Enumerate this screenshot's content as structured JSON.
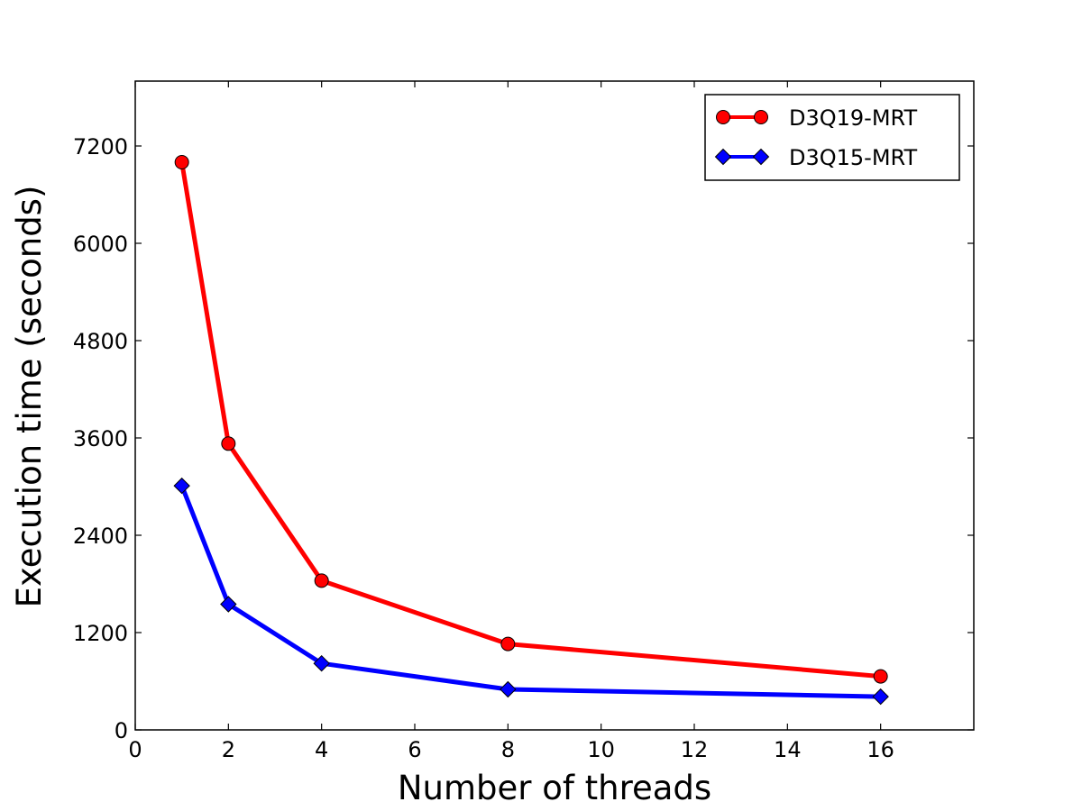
{
  "chart_data": {
    "type": "line",
    "title": "",
    "xlabel": "Number of threads",
    "ylabel": "Execution time (seconds)",
    "xlim": [
      0,
      18
    ],
    "ylim": [
      0,
      8000
    ],
    "xticks": [
      0,
      2,
      4,
      6,
      8,
      10,
      12,
      14,
      16
    ],
    "yticks": [
      0,
      1200,
      2400,
      3600,
      4800,
      6000,
      7200
    ],
    "grid": false,
    "legend_position": "top-right",
    "series": [
      {
        "name": "D3Q19-MRT",
        "color": "#ff0000",
        "marker": "circle",
        "x": [
          1,
          2,
          4,
          8,
          16
        ],
        "y": [
          7000,
          3530,
          1840,
          1060,
          660
        ]
      },
      {
        "name": "D3Q15-MRT",
        "color": "#0000ff",
        "marker": "diamond",
        "x": [
          1,
          2,
          4,
          8,
          16
        ],
        "y": [
          3010,
          1550,
          820,
          500,
          410
        ]
      }
    ]
  }
}
